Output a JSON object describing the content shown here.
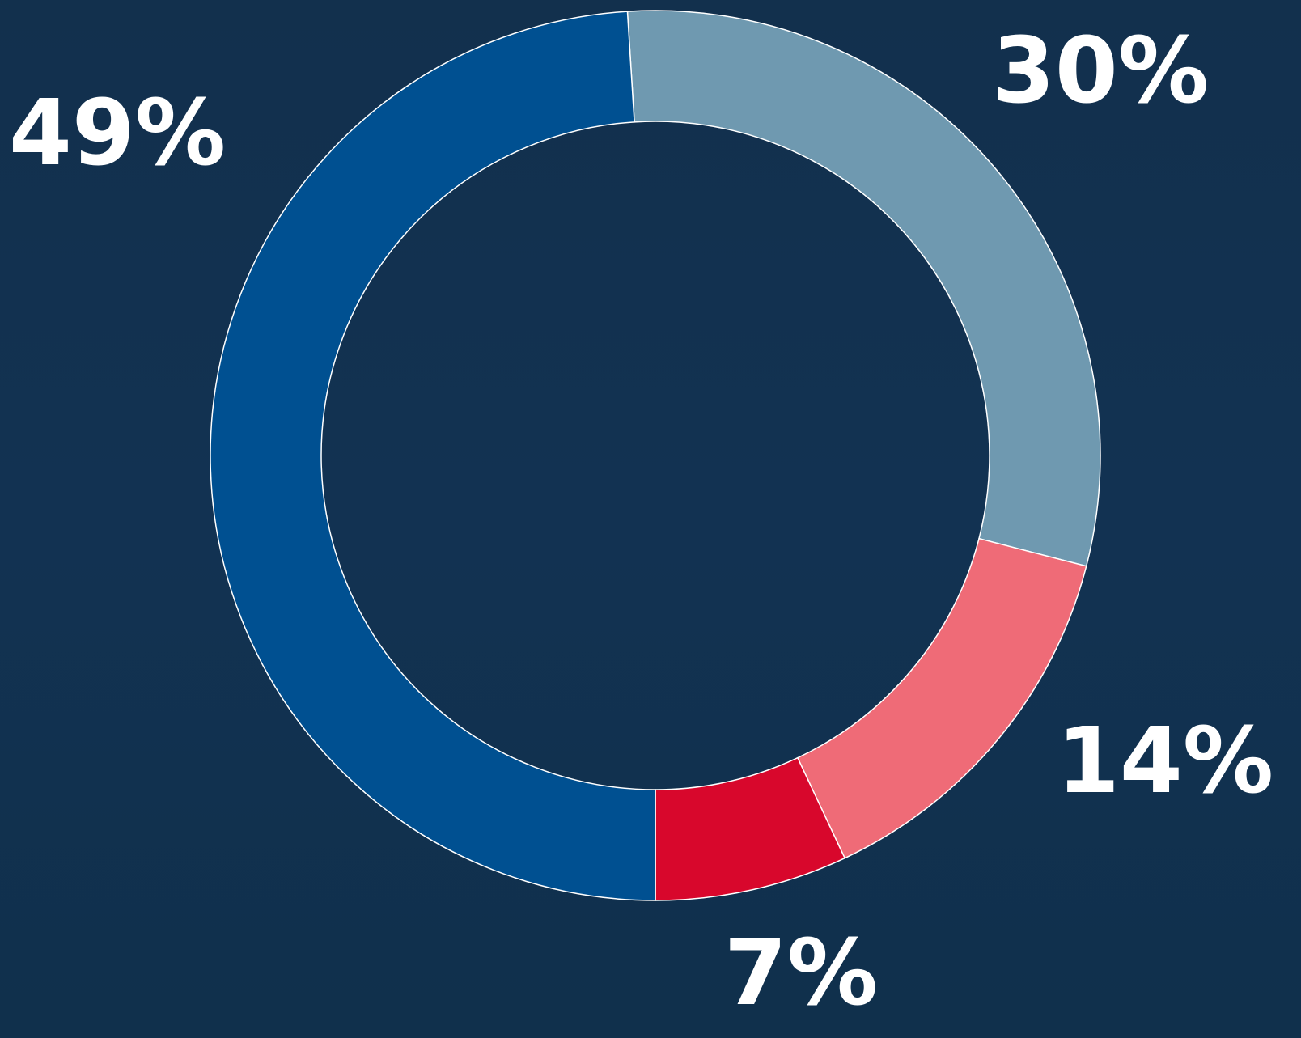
{
  "chart_data": {
    "type": "donut",
    "values": [
      30,
      14,
      7,
      49
    ],
    "value_labels": [
      "30%",
      "14%",
      "7%",
      "49%"
    ],
    "colors": [
      "#6f99b0",
      "#ef6b77",
      "#d8072c",
      "#005091"
    ]
  }
}
